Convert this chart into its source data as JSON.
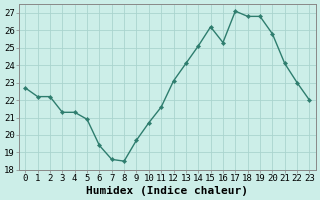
{
  "x": [
    0,
    1,
    2,
    3,
    4,
    5,
    6,
    7,
    8,
    9,
    10,
    11,
    12,
    13,
    14,
    15,
    16,
    17,
    18,
    19,
    20,
    21,
    22,
    23
  ],
  "y": [
    22.7,
    22.2,
    22.2,
    21.3,
    21.3,
    20.9,
    19.4,
    18.6,
    18.5,
    19.7,
    20.7,
    21.6,
    23.1,
    24.1,
    25.1,
    26.2,
    25.3,
    27.1,
    26.8,
    26.8,
    25.8,
    24.1,
    23.0,
    22.0
  ],
  "line_color": "#2e7d6e",
  "marker": "D",
  "marker_size": 2.2,
  "line_width": 1.0,
  "bg_color": "#cceee8",
  "grid_color": "#aad4ce",
  "xlabel": "Humidex (Indice chaleur)",
  "ylim": [
    18,
    27.5
  ],
  "xlim": [
    -0.5,
    23.5
  ],
  "yticks": [
    18,
    19,
    20,
    21,
    22,
    23,
    24,
    25,
    26,
    27
  ],
  "xtick_labels": [
    "0",
    "1",
    "2",
    "3",
    "4",
    "5",
    "6",
    "7",
    "8",
    "9",
    "10",
    "11",
    "12",
    "13",
    "14",
    "15",
    "16",
    "17",
    "18",
    "19",
    "20",
    "21",
    "22",
    "23"
  ],
  "tick_fontsize": 6.5,
  "label_fontsize": 8,
  "spine_color": "#888888"
}
